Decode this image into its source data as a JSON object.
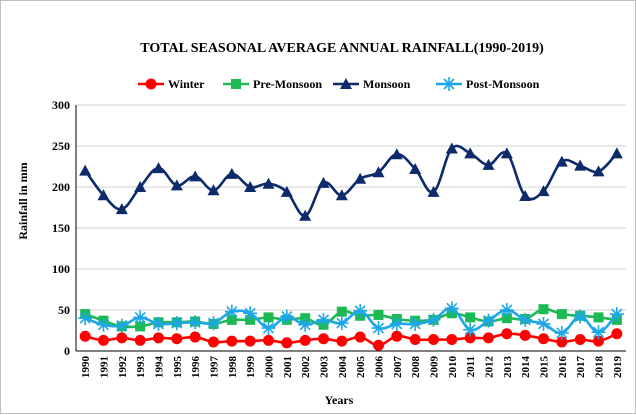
{
  "chart_data": {
    "type": "line",
    "title": "TOTAL SEASONAL AVERAGE ANNUAL RAINFALL(1990-2019)",
    "xlabel": "Years",
    "ylabel": "Rainfall in mm",
    "ylim": [
      0,
      300
    ],
    "yticks": [
      0,
      50,
      100,
      150,
      200,
      250,
      300
    ],
    "grid": "horizontal",
    "legend": "top",
    "x": [
      "1990",
      "1991",
      "1992",
      "1993",
      "1994",
      "1995",
      "1996",
      "1997",
      "1998",
      "1999",
      "2000",
      "2001",
      "2002",
      "2003",
      "2004",
      "2005",
      "2006",
      "2007",
      "2008",
      "2009",
      "2010",
      "2011",
      "2012",
      "2013",
      "2014",
      "2015",
      "2016",
      "2017",
      "2018",
      "2019"
    ],
    "series": [
      {
        "name": "Winter",
        "color": "#ff0000",
        "marker": "circle",
        "values": [
          18,
          13,
          16,
          13,
          16,
          15,
          17,
          11,
          12,
          12,
          13,
          10,
          13,
          15,
          12,
          17,
          7,
          18,
          14,
          14,
          14,
          16,
          16,
          21,
          19,
          15,
          11,
          14,
          12,
          21
        ]
      },
      {
        "name": "Pre-Monsoon",
        "color": "#1db954",
        "marker": "square",
        "values": [
          45,
          37,
          30,
          30,
          35,
          35,
          36,
          33,
          38,
          38,
          41,
          38,
          40,
          32,
          48,
          43,
          44,
          39,
          37,
          38,
          46,
          41,
          36,
          40,
          39,
          51,
          45,
          43,
          41,
          38
        ]
      },
      {
        "name": "Monsoon",
        "color": "#0d2a6b",
        "marker": "triangle",
        "values": [
          220,
          190,
          173,
          200,
          223,
          202,
          213,
          196,
          216,
          200,
          204,
          194,
          165,
          205,
          190,
          210,
          218,
          240,
          222,
          194,
          247,
          241,
          227,
          241,
          189,
          195,
          231,
          226,
          219,
          241
        ]
      },
      {
        "name": "Post-Monsoon",
        "color": "#1ea7e8",
        "marker": "star",
        "values": [
          40,
          32,
          31,
          41,
          33,
          34,
          35,
          34,
          48,
          46,
          28,
          42,
          32,
          38,
          34,
          49,
          28,
          33,
          33,
          38,
          52,
          26,
          37,
          50,
          38,
          33,
          22,
          42,
          23,
          45
        ]
      }
    ]
  }
}
